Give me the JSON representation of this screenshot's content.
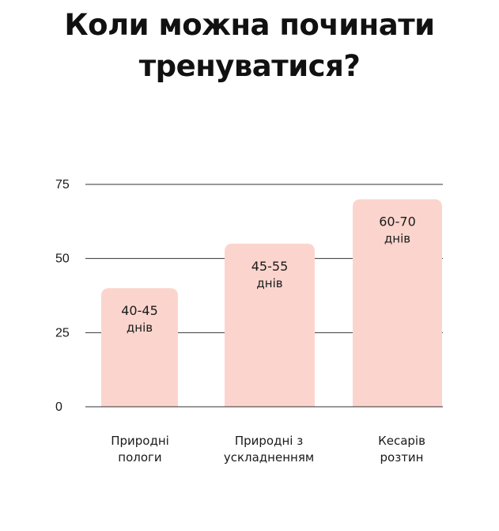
{
  "title_lines": [
    "Коли можна починати",
    "тренуватися?"
  ],
  "chart_data": {
    "type": "bar",
    "title": "Коли можна починати тренуватися?",
    "ylim": [
      0,
      75
    ],
    "yticks": [
      0,
      25,
      50,
      75
    ],
    "grid": true,
    "categories": [
      [
        "Природні",
        "пологи"
      ],
      [
        "Природні з",
        "ускладненням"
      ],
      [
        "Кесарів",
        "розтин"
      ]
    ],
    "values": [
      40,
      55,
      70
    ],
    "data_labels": [
      [
        "40-45",
        "днів"
      ],
      [
        "45-55",
        "днів"
      ],
      [
        "60-70",
        "днів"
      ]
    ],
    "bar_color": "#fbd5cd",
    "grid_color": "#333333"
  }
}
